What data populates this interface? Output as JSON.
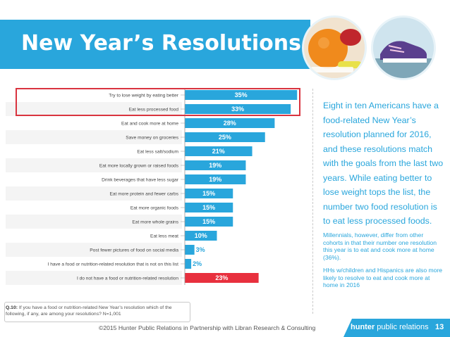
{
  "title": "New Year’s Resolutions",
  "side_text": "Eight in ten Americans have a food-related New Year’s resolution planned for 2016, and these resolutions match with the goals from the last two years.  While eating better to lose weight tops the list, the number two food resolution is to eat less processed foods.",
  "note1": "Millennials, however, differ from other cohorts in that their number one resolution this year is to eat and cook more at home (36%).",
  "note2": "HHs w/children and Hispanics are also more likely to resolve to eat and cook more at home in 2016",
  "question_label": "Q.10:",
  "question_text": "If you have a food or nutrition-related New Year’s resolution which of the following, if any, are among your resolutions? N=1,001",
  "footer": "©2015 Hunter Public Relations in Partnership with Libran Research & Consulting",
  "brand_bold": "hunter",
  "brand_rest": " public relations",
  "page_number": "13",
  "colors": {
    "accent": "#29a6dc",
    "highlight_bar": "#e8303e",
    "highlight_box": "#d9343f"
  },
  "chart_data": {
    "type": "bar",
    "orientation": "horizontal",
    "categories": [
      "Try to lose weight by eating better",
      "Eat less processed food",
      "Eat and cook more at home",
      "Save money on groceries",
      "Eat less salt/sodium",
      "Eat more locally grown or raised foods",
      "Drink beverages that have less sugar",
      "Eat more protein and fewer carbs",
      "Eat more organic foods",
      "Eat more whole grains",
      "Eat less meat",
      "Post fewer pictures of food on social media",
      "I have a food or nutrition-related resolution that is not on this list",
      "I do not have a food or nutrition-related resolution"
    ],
    "values": [
      35,
      33,
      28,
      25,
      21,
      19,
      19,
      15,
      15,
      15,
      10,
      3,
      2,
      23
    ],
    "value_labels": [
      "35%",
      "33%",
      "28%",
      "25%",
      "21%",
      "19%",
      "19%",
      "15%",
      "15%",
      "15%",
      "10%",
      "3%",
      "2%",
      "23%"
    ],
    "highlighted": [
      0,
      1
    ],
    "red_bar_index": 13
  }
}
